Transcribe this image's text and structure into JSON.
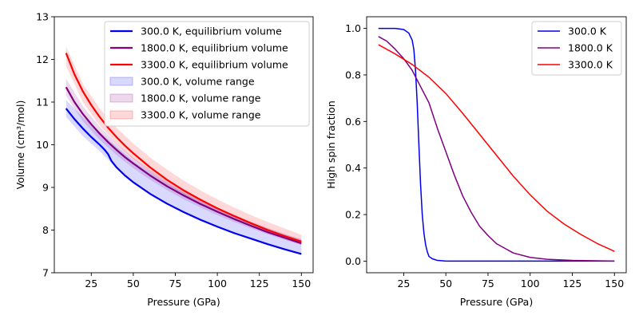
{
  "chart_data": [
    {
      "type": "line",
      "xlabel": "Pressure (GPa)",
      "ylabel": "Volume (cm³/mol)",
      "xlim": [
        3,
        157
      ],
      "ylim": [
        7,
        13
      ],
      "xticks": [
        25,
        50,
        75,
        100,
        125,
        150
      ],
      "yticks": [
        7,
        8,
        9,
        10,
        11,
        12,
        13
      ],
      "legend_position": "upper-right",
      "series": [
        {
          "name": "300.0 K, equilibrium volume",
          "color": "#0000ee",
          "x": [
            10,
            15,
            20,
            25,
            30,
            33,
            35,
            37,
            40,
            45,
            50,
            60,
            70,
            80,
            90,
            100,
            110,
            120,
            130,
            140,
            150
          ],
          "y": [
            10.85,
            10.6,
            10.38,
            10.18,
            10.0,
            9.88,
            9.78,
            9.62,
            9.47,
            9.28,
            9.12,
            8.85,
            8.62,
            8.42,
            8.24,
            8.08,
            7.93,
            7.8,
            7.67,
            7.55,
            7.44
          ]
        },
        {
          "name": "1800.0 K, equilibrium volume",
          "color": "#800080",
          "x": [
            10,
            15,
            20,
            25,
            30,
            35,
            40,
            45,
            50,
            60,
            70,
            80,
            90,
            100,
            110,
            120,
            130,
            140,
            150
          ],
          "y": [
            11.35,
            11.0,
            10.72,
            10.48,
            10.26,
            10.06,
            9.88,
            9.71,
            9.56,
            9.28,
            9.03,
            8.81,
            8.61,
            8.43,
            8.26,
            8.1,
            7.95,
            7.82,
            7.69
          ]
        },
        {
          "name": "3300.0 K, equilibrium volume",
          "color": "#ff0000",
          "x": [
            10,
            15,
            20,
            25,
            30,
            35,
            40,
            45,
            50,
            60,
            70,
            80,
            90,
            100,
            110,
            120,
            130,
            140,
            150
          ],
          "y": [
            12.15,
            11.65,
            11.25,
            10.93,
            10.65,
            10.4,
            10.18,
            9.98,
            9.8,
            9.47,
            9.18,
            8.93,
            8.71,
            8.51,
            8.33,
            8.16,
            8.0,
            7.86,
            7.73
          ]
        }
      ],
      "bands": [
        {
          "name": "300.0 K, volume range",
          "color": "#0000ff",
          "x": [
            10,
            20,
            30,
            40,
            50,
            60,
            70,
            80,
            90,
            100,
            110,
            120,
            130,
            140,
            150
          ],
          "lower": [
            10.65,
            10.2,
            9.85,
            9.45,
            9.12,
            8.85,
            8.62,
            8.42,
            8.24,
            8.08,
            7.93,
            7.8,
            7.67,
            7.55,
            7.44
          ],
          "upper": [
            11.05,
            10.65,
            10.3,
            9.95,
            9.62,
            9.35,
            9.1,
            8.88,
            8.68,
            8.5,
            8.33,
            8.18,
            8.04,
            7.9,
            7.78
          ]
        },
        {
          "name": "1800.0 K, volume range",
          "color": "#800080",
          "x": [
            10,
            20,
            30,
            40,
            50,
            60,
            70,
            80,
            90,
            100,
            110,
            120,
            130,
            140,
            150
          ],
          "lower": [
            11.15,
            10.55,
            10.12,
            9.76,
            9.45,
            9.18,
            8.94,
            8.72,
            8.53,
            8.35,
            8.19,
            8.04,
            7.9,
            7.77,
            7.65
          ],
          "upper": [
            11.55,
            10.9,
            10.42,
            10.03,
            9.7,
            9.41,
            9.16,
            8.93,
            8.72,
            8.53,
            8.36,
            8.2,
            8.05,
            7.91,
            7.78
          ]
        },
        {
          "name": "3300.0 K, volume range",
          "color": "#ff0000",
          "x": [
            10,
            20,
            30,
            40,
            50,
            60,
            70,
            80,
            90,
            100,
            110,
            120,
            130,
            140,
            150
          ],
          "lower": [
            11.85,
            11.0,
            10.45,
            10.02,
            9.66,
            9.35,
            9.07,
            8.83,
            8.61,
            8.42,
            8.24,
            8.08,
            7.93,
            7.79,
            7.66
          ],
          "upper": [
            12.3,
            11.42,
            10.85,
            10.4,
            10.03,
            9.7,
            9.42,
            9.16,
            8.93,
            8.72,
            8.53,
            8.35,
            8.19,
            8.04,
            7.89
          ]
        }
      ]
    },
    {
      "type": "line",
      "xlabel": "Pressure (GPa)",
      "ylabel": "High spin fraction",
      "xlim": [
        3,
        157
      ],
      "ylim": [
        -0.05,
        1.05
      ],
      "xticks": [
        25,
        50,
        75,
        100,
        125,
        150
      ],
      "yticks": [
        0.0,
        0.2,
        0.4,
        0.6,
        0.8,
        1.0
      ],
      "legend_position": "upper-right",
      "series": [
        {
          "name": "300.0 K",
          "color": "#0000ee",
          "x": [
            10,
            20,
            25,
            28,
            30,
            31,
            32,
            33,
            34,
            35,
            36,
            37,
            38,
            39,
            40,
            42,
            45,
            50,
            60,
            80,
            100,
            125,
            150
          ],
          "y": [
            1.0,
            1.0,
            0.995,
            0.98,
            0.95,
            0.91,
            0.82,
            0.68,
            0.5,
            0.33,
            0.2,
            0.12,
            0.07,
            0.04,
            0.02,
            0.01,
            0.003,
            0.0,
            0.0,
            0.0,
            0.0,
            0.0,
            0.0
          ]
        },
        {
          "name": "1800.0 K",
          "color": "#800080",
          "x": [
            10,
            15,
            20,
            25,
            30,
            35,
            40,
            45,
            50,
            55,
            60,
            65,
            70,
            75,
            80,
            90,
            100,
            110,
            125,
            150
          ],
          "y": [
            0.965,
            0.945,
            0.91,
            0.87,
            0.82,
            0.75,
            0.68,
            0.57,
            0.47,
            0.37,
            0.28,
            0.21,
            0.15,
            0.11,
            0.075,
            0.035,
            0.016,
            0.008,
            0.003,
            0.0
          ]
        },
        {
          "name": "3300.0 K",
          "color": "#ff0000",
          "x": [
            10,
            20,
            30,
            40,
            50,
            60,
            70,
            80,
            90,
            100,
            110,
            120,
            130,
            140,
            150
          ],
          "y": [
            0.93,
            0.89,
            0.845,
            0.79,
            0.72,
            0.635,
            0.545,
            0.455,
            0.365,
            0.285,
            0.215,
            0.16,
            0.115,
            0.075,
            0.042
          ]
        }
      ]
    }
  ]
}
